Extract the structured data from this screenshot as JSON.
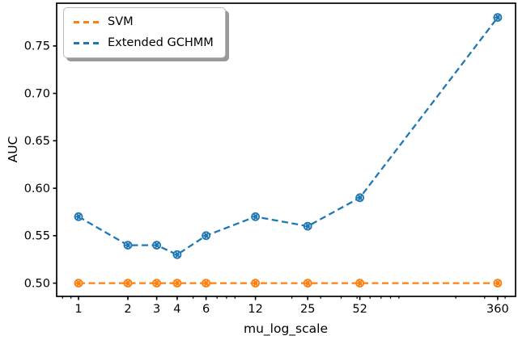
{
  "figure": {
    "xlabel": "mu_log_scale",
    "ylabel": "AUC"
  },
  "chart_data": {
    "type": "line",
    "title": "",
    "xlabel": "mu_log_scale",
    "ylabel": "AUC",
    "x_scale": "log",
    "grid": false,
    "legend_position": "upper left",
    "x": [
      1,
      2,
      3,
      4,
      6,
      12,
      25,
      52,
      360
    ],
    "xtick_labels": [
      "1",
      "2",
      "3",
      "4",
      "6",
      "12",
      "25",
      "52",
      "360"
    ],
    "minor_xticks": [
      0.8,
      0.9,
      2,
      3,
      4,
      5,
      6,
      7,
      8,
      9,
      20,
      30,
      40,
      50,
      60,
      70,
      80,
      90,
      200,
      300,
      400
    ],
    "yticks": [
      0.5,
      0.55,
      0.6,
      0.65,
      0.7,
      0.75
    ],
    "ytick_labels": [
      "0.50",
      "0.55",
      "0.60",
      "0.65",
      "0.70",
      "0.75"
    ],
    "xlim": [
      0.736,
      463
    ],
    "ylim": [
      0.486,
      0.795
    ],
    "axis_color": "#000000",
    "background": "#ffffff",
    "series": [
      {
        "name": "SVM",
        "color": "#ff7f0e",
        "linestyle": "dashed",
        "marker": "o",
        "values": [
          0.5,
          0.5,
          0.5,
          0.5,
          0.5,
          0.5,
          0.5,
          0.5,
          0.5
        ]
      },
      {
        "name": "Extended GCHMM",
        "color": "#1f77b4",
        "linestyle": "dashed",
        "marker": "o",
        "values": [
          0.57,
          0.54,
          0.54,
          0.53,
          0.55,
          0.57,
          0.56,
          0.59,
          0.78
        ]
      }
    ]
  }
}
